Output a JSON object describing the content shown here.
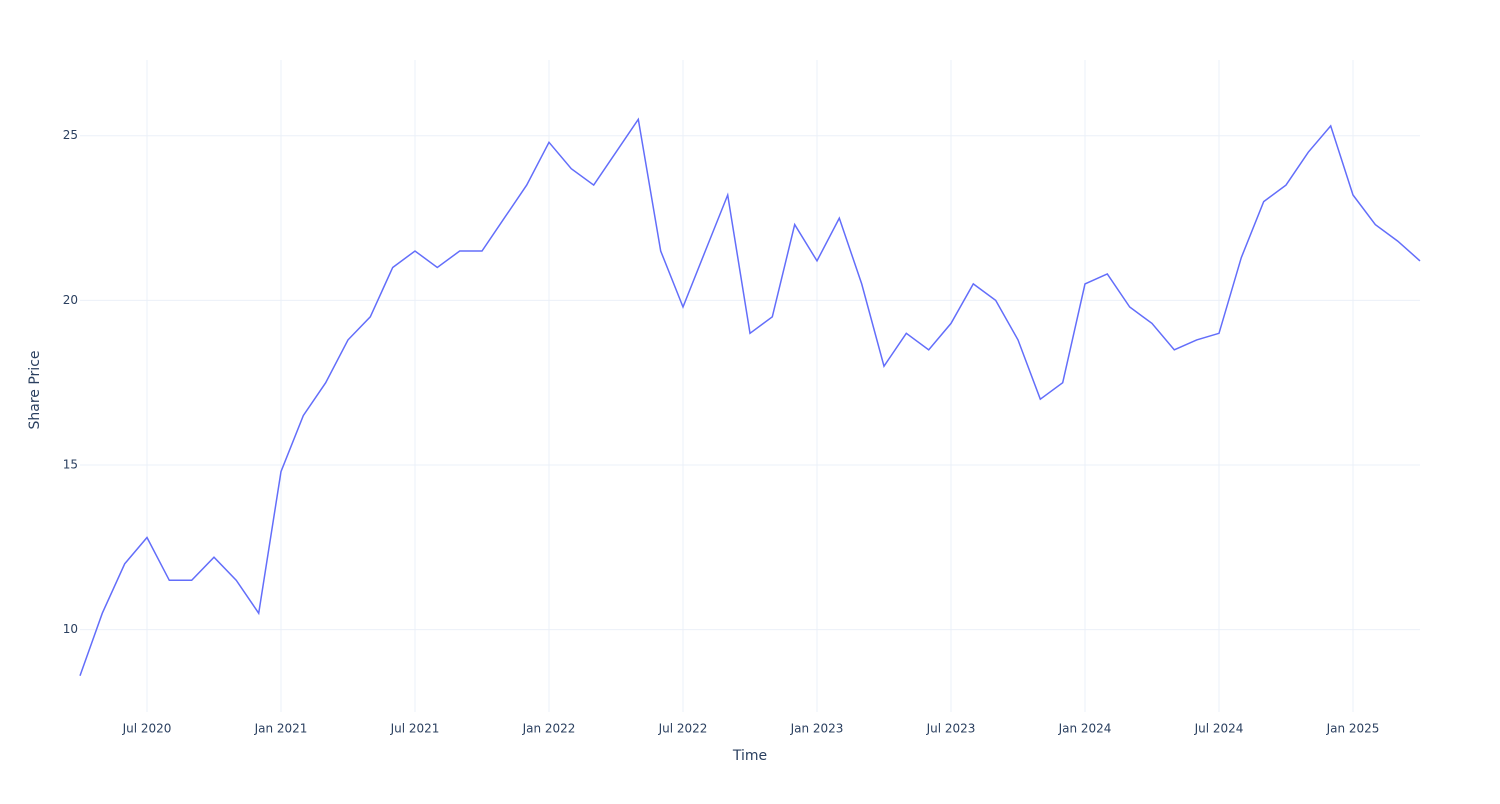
{
  "chart_data": {
    "type": "line",
    "x_label": "Time",
    "y_label": "Share Price",
    "x": [
      "2020-04",
      "2020-05",
      "2020-06",
      "2020-07",
      "2020-08",
      "2020-09",
      "2020-10",
      "2020-11",
      "2020-12",
      "2021-01",
      "2021-02",
      "2021-03",
      "2021-04",
      "2021-05",
      "2021-06",
      "2021-07",
      "2021-08",
      "2021-09",
      "2021-10",
      "2021-11",
      "2021-12",
      "2022-01",
      "2022-02",
      "2022-03",
      "2022-04",
      "2022-05",
      "2022-06",
      "2022-07",
      "2022-08",
      "2022-09",
      "2022-10",
      "2022-11",
      "2022-12",
      "2023-01",
      "2023-02",
      "2023-03",
      "2023-04",
      "2023-05",
      "2023-06",
      "2023-07",
      "2023-08",
      "2023-09",
      "2023-10",
      "2023-11",
      "2023-12",
      "2024-01",
      "2024-02",
      "2024-03",
      "2024-04",
      "2024-05",
      "2024-06",
      "2024-07",
      "2024-08",
      "2024-09",
      "2024-10",
      "2024-11",
      "2024-12",
      "2025-01",
      "2025-02",
      "2025-03",
      "2025-04"
    ],
    "series": [
      {
        "name": "Share Price",
        "color": "#636efa",
        "values": [
          8.6,
          10.5,
          12,
          12.8,
          11.5,
          11.5,
          12.2,
          11.5,
          10.5,
          14.8,
          16.5,
          17.5,
          18.8,
          19.5,
          21,
          21.5,
          21,
          21.5,
          21.5,
          22.5,
          23.5,
          24.8,
          24,
          23.5,
          24.5,
          25.5,
          21.5,
          19.8,
          21.5,
          23.2,
          19,
          19.5,
          22.3,
          21.2,
          22.5,
          20.5,
          18,
          19,
          18.5,
          19.3,
          20.5,
          20,
          18.8,
          17,
          17.5,
          20.5,
          20.8,
          19.8,
          19.3,
          18.5,
          18.8,
          19,
          21.3,
          23,
          23.5,
          24.5,
          25.3,
          23.2,
          22.3,
          21.8,
          21.2
        ]
      }
    ],
    "xlim": [
      "2020-04",
      "2025-04"
    ],
    "xticks": [
      {
        "value": "2020-07",
        "label": "Jul 2020"
      },
      {
        "value": "2021-01",
        "label": "Jan 2021"
      },
      {
        "value": "2021-07",
        "label": "Jul 2021"
      },
      {
        "value": "2022-01",
        "label": "Jan 2022"
      },
      {
        "value": "2022-07",
        "label": "Jul 2022"
      },
      {
        "value": "2023-01",
        "label": "Jan 2023"
      },
      {
        "value": "2023-07",
        "label": "Jul 2023"
      },
      {
        "value": "2024-01",
        "label": "Jan 2024"
      },
      {
        "value": "2024-07",
        "label": "Jul 2024"
      },
      {
        "value": "2025-01",
        "label": "Jan 2025"
      }
    ],
    "ylim": [
      7.5,
      27.3
    ],
    "yticks": [
      10,
      15,
      20,
      25
    ],
    "grid": true
  }
}
